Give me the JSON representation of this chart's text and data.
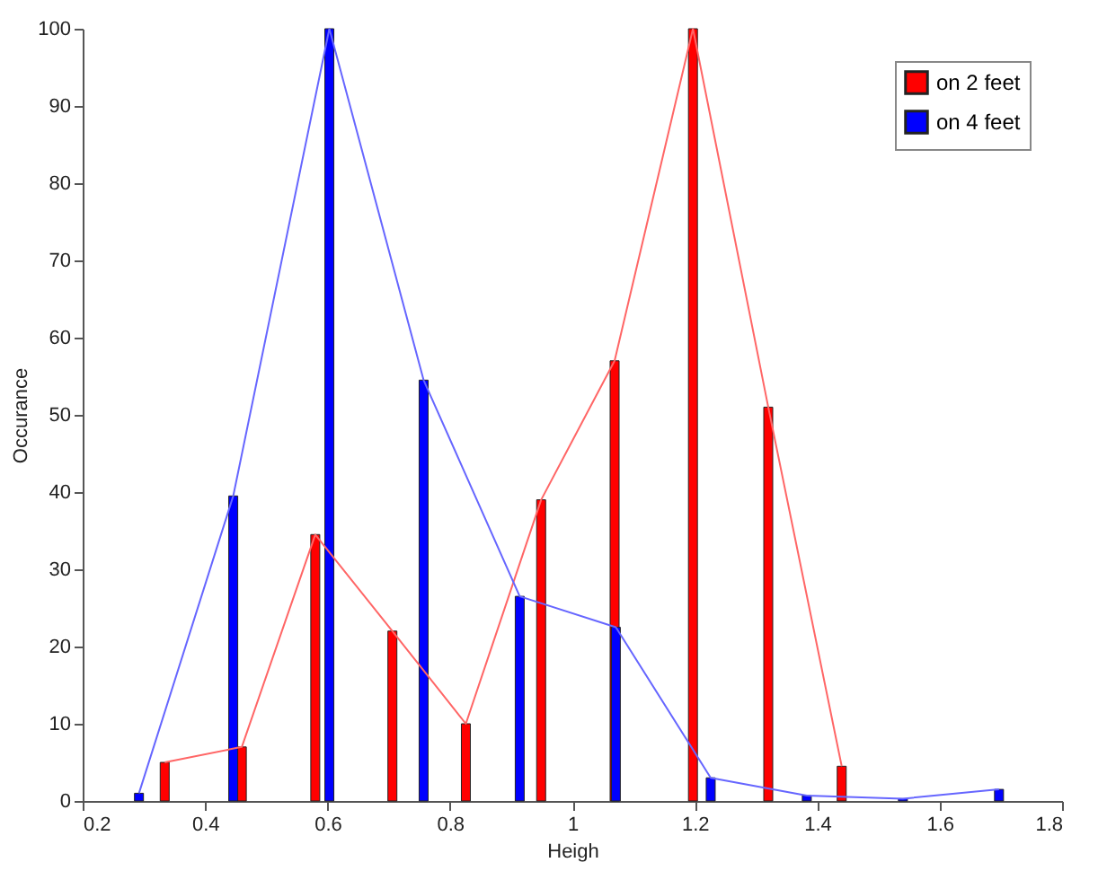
{
  "chart_data": {
    "type": "bar",
    "xlabel": "Heigh",
    "ylabel": "Occurance",
    "xlim": [
      0.2,
      1.8
    ],
    "xticks": [
      0.2,
      0.4,
      0.6,
      0.8,
      1,
      1.2,
      1.4,
      1.6,
      1.8
    ],
    "ylim": [
      0,
      100
    ],
    "yticks": [
      0,
      10,
      20,
      30,
      40,
      50,
      60,
      70,
      80,
      90,
      100
    ],
    "grid": false,
    "legend": "top right",
    "series": [
      {
        "name": "on 2 feet",
        "color": "#ff0000",
        "x": [
          0.334,
          0.46,
          0.58,
          0.706,
          0.826,
          0.949,
          1.069,
          1.197,
          1.32,
          1.44
        ],
        "values": [
          5,
          7,
          34.5,
          22,
          10,
          39,
          57,
          100,
          51,
          4.5
        ]
      },
      {
        "name": "on 4 feet",
        "color": "#0000ff",
        "x": [
          0.292,
          0.446,
          0.603,
          0.757,
          0.914,
          1.071,
          1.226,
          1.383,
          1.54,
          1.697
        ],
        "values": [
          1,
          39.5,
          100,
          54.5,
          26.5,
          22.5,
          3,
          0.7,
          0.3,
          1.5
        ]
      },
      {
        "type": "line",
        "color": "#ff6666",
        "x": [
          0.334,
          0.46,
          0.58,
          0.706,
          0.826,
          0.949,
          1.069,
          1.197,
          1.32,
          1.44
        ],
        "values": [
          5,
          7,
          34.5,
          22,
          10,
          39,
          57,
          100,
          51,
          4.5
        ]
      },
      {
        "type": "line",
        "color": "#6666ff",
        "x": [
          0.292,
          0.446,
          0.603,
          0.757,
          0.914,
          1.071,
          1.226,
          1.383,
          1.54,
          1.697
        ],
        "values": [
          1,
          39.5,
          100,
          54.5,
          26.5,
          22.5,
          3,
          0.7,
          0.3,
          1.5
        ]
      }
    ]
  }
}
